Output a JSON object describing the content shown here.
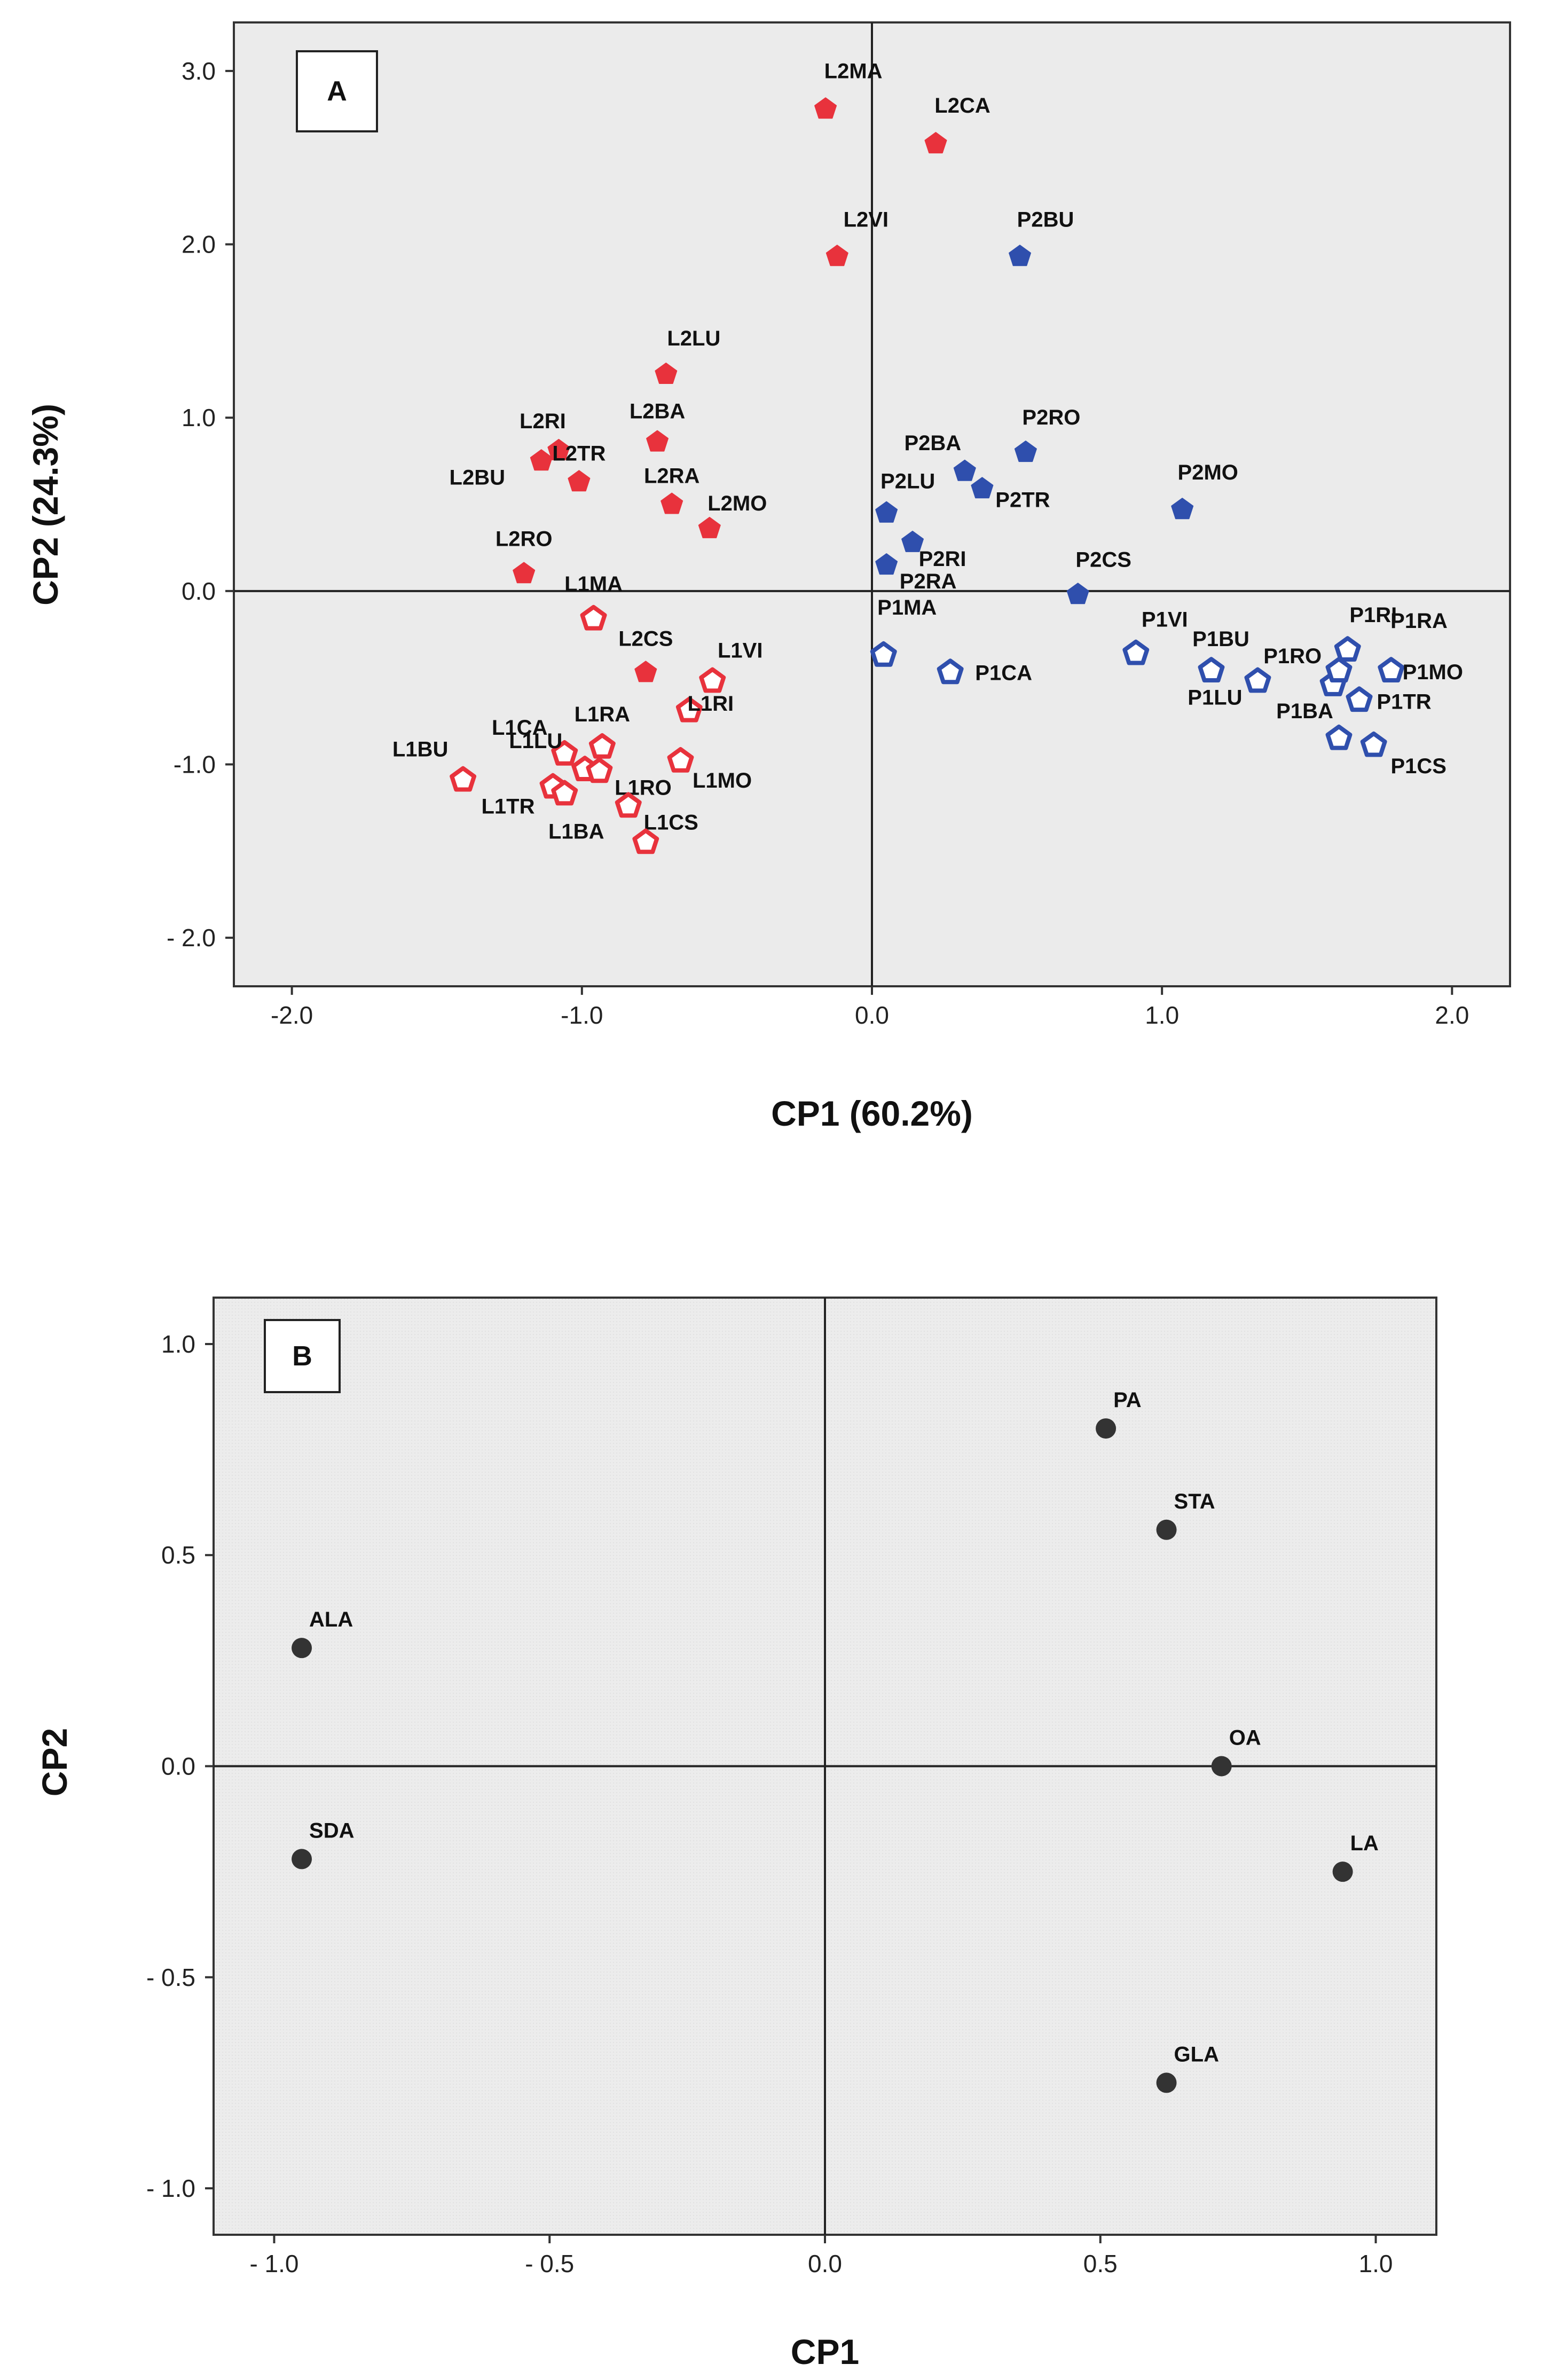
{
  "chart_data": [
    {
      "type": "scatter",
      "panel": "A",
      "xlabel": "CP1 (60.2%)",
      "ylabel": "CP2 (24.3%)",
      "xlim": [
        -2.2,
        2.2
      ],
      "ylim": [
        -2.28,
        3.28
      ],
      "xticks": [
        {
          "v": -2.0,
          "label": "-2.0"
        },
        {
          "v": -1.0,
          "label": "-1.0"
        },
        {
          "v": 0.0,
          "label": "0.0"
        },
        {
          "v": 1.0,
          "label": "1.0"
        },
        {
          "v": 2.0,
          "label": "2.0"
        }
      ],
      "yticks": [
        {
          "v": 3.0,
          "label": "3.0"
        },
        {
          "v": 2.0,
          "label": "2.0"
        },
        {
          "v": 1.0,
          "label": "1.0"
        },
        {
          "v": 0.0,
          "label": "0.0"
        },
        {
          "v": -1.0,
          "label": "-1.0"
        },
        {
          "v": -2.0,
          "label": "- 2.0"
        }
      ],
      "colors": {
        "red": "#e8323c",
        "blue": "#2f4fad"
      },
      "points": [
        {
          "label": "L2MA",
          "x": -0.16,
          "y": 2.78,
          "color": "red",
          "filled": true
        },
        {
          "label": "L2CA",
          "x": 0.22,
          "y": 2.58,
          "color": "red",
          "filled": true
        },
        {
          "label": "L2VI",
          "x": -0.12,
          "y": 1.93,
          "color": "red",
          "filled": true
        },
        {
          "label": "L2LU",
          "x": -0.71,
          "y": 1.25,
          "color": "red",
          "filled": true
        },
        {
          "label": "L2RI",
          "x": -1.08,
          "y": 0.81,
          "color": "red",
          "filled": true
        },
        {
          "label": "L2BA",
          "x": -0.74,
          "y": 0.86,
          "color": "red",
          "filled": true
        },
        {
          "label": "L2TR",
          "x": -1.01,
          "y": 0.63,
          "color": "red",
          "filled": true
        },
        {
          "label": "L2BU",
          "x": -1.14,
          "y": 0.75,
          "color": "red",
          "filled": true
        },
        {
          "label": "L2RA",
          "x": -0.69,
          "y": 0.5,
          "color": "red",
          "filled": true
        },
        {
          "label": "L2MO",
          "x": -0.56,
          "y": 0.36,
          "color": "red",
          "filled": true
        },
        {
          "label": "L2RO",
          "x": -1.2,
          "y": 0.1,
          "color": "red",
          "filled": true
        },
        {
          "label": "L2CS",
          "x": -0.78,
          "y": -0.47,
          "color": "red",
          "filled": true
        },
        {
          "label": "L1MA",
          "x": -0.96,
          "y": -0.16,
          "color": "red",
          "filled": false
        },
        {
          "label": "L1VI",
          "x": -0.55,
          "y": -0.52,
          "color": "red",
          "filled": false
        },
        {
          "label": "L1RI",
          "x": -0.63,
          "y": -0.69,
          "color": "red",
          "filled": false
        },
        {
          "label": "L1RA",
          "x": -0.93,
          "y": -0.9,
          "color": "red",
          "filled": false
        },
        {
          "label": "L1CA",
          "x": -1.06,
          "y": -0.94,
          "color": "red",
          "filled": false
        },
        {
          "label": "L1LU",
          "x": -0.99,
          "y": -1.03,
          "color": "red",
          "filled": false
        },
        {
          "label": "L1RO",
          "x": -0.94,
          "y": -1.04,
          "color": "red",
          "filled": false
        },
        {
          "label": "L1MO",
          "x": -0.66,
          "y": -0.98,
          "color": "red",
          "filled": false
        },
        {
          "label": "L1BU",
          "x": -1.41,
          "y": -1.09,
          "color": "red",
          "filled": false
        },
        {
          "label": "L1TR",
          "x": -1.1,
          "y": -1.13,
          "color": "red",
          "filled": false
        },
        {
          "label": "L1BA",
          "x": -1.06,
          "y": -1.17,
          "color": "red",
          "filled": false
        },
        {
          "label": "L1CS",
          "x": -0.84,
          "y": -1.24,
          "color": "red",
          "filled": false
        },
        {
          "label": "L1CS-2",
          "x": -0.78,
          "y": -1.45,
          "color": "red",
          "filled": false,
          "hide_label": true
        },
        {
          "label": "P2BU",
          "x": 0.51,
          "y": 1.93,
          "color": "blue",
          "filled": true
        },
        {
          "label": "P2RO",
          "x": 0.53,
          "y": 0.8,
          "color": "blue",
          "filled": true
        },
        {
          "label": "P2BA",
          "x": 0.32,
          "y": 0.69,
          "color": "blue",
          "filled": true
        },
        {
          "label": "P2TR",
          "x": 0.38,
          "y": 0.59,
          "color": "blue",
          "filled": true
        },
        {
          "label": "P2LU",
          "x": 0.05,
          "y": 0.45,
          "color": "blue",
          "filled": true
        },
        {
          "label": "P2MO",
          "x": 1.07,
          "y": 0.47,
          "color": "blue",
          "filled": true
        },
        {
          "label": "P2RI",
          "x": 0.14,
          "y": 0.28,
          "color": "blue",
          "filled": true
        },
        {
          "label": "P2RA",
          "x": 0.05,
          "y": 0.15,
          "color": "blue",
          "filled": true
        },
        {
          "label": "P2CS",
          "x": 0.71,
          "y": -0.02,
          "color": "blue",
          "filled": true
        },
        {
          "label": "P1MA",
          "x": 0.04,
          "y": -0.37,
          "color": "blue",
          "filled": false
        },
        {
          "label": "P1CA",
          "x": 0.27,
          "y": -0.47,
          "color": "blue",
          "filled": false
        },
        {
          "label": "P1VI",
          "x": 0.91,
          "y": -0.36,
          "color": "blue",
          "filled": false
        },
        {
          "label": "P1BU",
          "x": 1.17,
          "y": -0.46,
          "color": "blue",
          "filled": false
        },
        {
          "label": "P1LU",
          "x": 1.33,
          "y": -0.52,
          "color": "blue",
          "filled": false
        },
        {
          "label": "P1RO",
          "x": 1.59,
          "y": -0.54,
          "color": "blue",
          "filled": false
        },
        {
          "label": "P1RI",
          "x": 1.64,
          "y": -0.34,
          "color": "blue",
          "filled": false
        },
        {
          "label": "P1RA",
          "x": 1.61,
          "y": -0.46,
          "color": "blue",
          "filled": false
        },
        {
          "label": "P1MO",
          "x": 1.79,
          "y": -0.46,
          "color": "blue",
          "filled": false
        },
        {
          "label": "P1TR",
          "x": 1.68,
          "y": -0.63,
          "color": "blue",
          "filled": false
        },
        {
          "label": "P1BA",
          "x": 1.61,
          "y": -0.85,
          "color": "blue",
          "filled": false
        },
        {
          "label": "P1CS",
          "x": 1.73,
          "y": -0.89,
          "color": "blue",
          "filled": false
        }
      ]
    },
    {
      "type": "scatter",
      "panel": "B",
      "xlabel": "CP1",
      "ylabel": "CP2",
      "xlim": [
        -1.11,
        1.11
      ],
      "ylim": [
        -1.11,
        1.11
      ],
      "xticks": [
        {
          "v": -1.0,
          "label": "- 1.0"
        },
        {
          "v": -0.5,
          "label": "- 0.5"
        },
        {
          "v": 0.0,
          "label": "0.0"
        },
        {
          "v": 0.5,
          "label": "0.5"
        },
        {
          "v": 1.0,
          "label": "1.0"
        }
      ],
      "yticks": [
        {
          "v": 1.0,
          "label": "1.0"
        },
        {
          "v": 0.5,
          "label": "0.5"
        },
        {
          "v": 0.0,
          "label": "0.0"
        },
        {
          "v": -0.5,
          "label": "- 0.5"
        },
        {
          "v": -1.0,
          "label": "- 1.0"
        }
      ],
      "colors": {
        "dot": "#333333"
      },
      "points": [
        {
          "label": "PA",
          "x": 0.51,
          "y": 0.8
        },
        {
          "label": "STA",
          "x": 0.62,
          "y": 0.56
        },
        {
          "label": "ALA",
          "x": -0.95,
          "y": 0.28
        },
        {
          "label": "OA",
          "x": 0.72,
          "y": 0.0
        },
        {
          "label": "SDA",
          "x": -0.95,
          "y": -0.22
        },
        {
          "label": "LA",
          "x": 0.94,
          "y": -0.25
        },
        {
          "label": "GLA",
          "x": 0.62,
          "y": -0.75
        }
      ]
    }
  ]
}
